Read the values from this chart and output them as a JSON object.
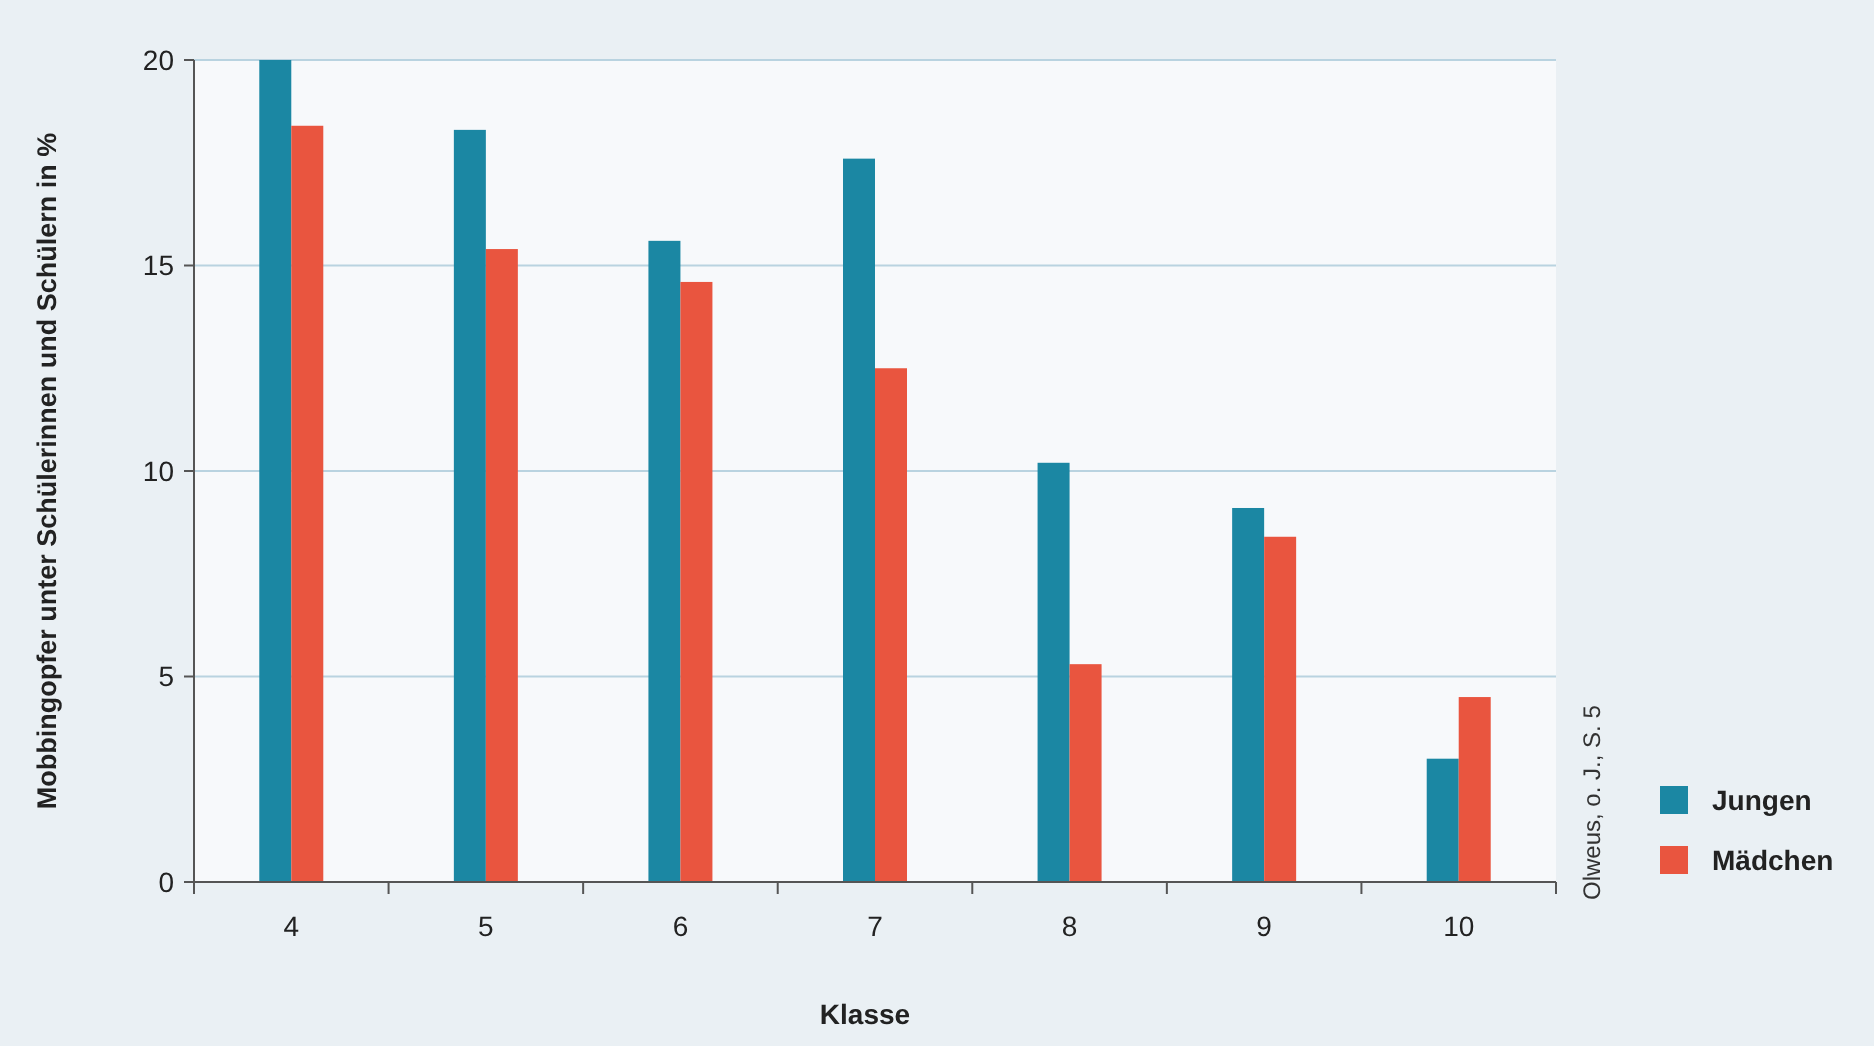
{
  "chart_data": {
    "type": "bar",
    "xlabel": "Klasse",
    "ylabel": "Mobbingopfer unter Schülerinnen und Schülern in %",
    "categories": [
      "4",
      "5",
      "6",
      "7",
      "8",
      "9",
      "10"
    ],
    "series": [
      {
        "name": "Jungen",
        "color": "#1b87a3",
        "values": [
          20.0,
          18.3,
          15.6,
          17.6,
          10.2,
          9.1,
          3.0
        ]
      },
      {
        "name": "Mädchen",
        "color": "#e9553f",
        "values": [
          18.4,
          15.4,
          14.6,
          12.5,
          5.3,
          8.4,
          4.5
        ]
      }
    ],
    "ylim": [
      0,
      20
    ],
    "yticks": [
      0,
      5,
      10,
      15,
      20
    ],
    "grid": "y",
    "legend": "bottom right",
    "annotations": [
      "Olweus, o. J., S. 5"
    ]
  }
}
